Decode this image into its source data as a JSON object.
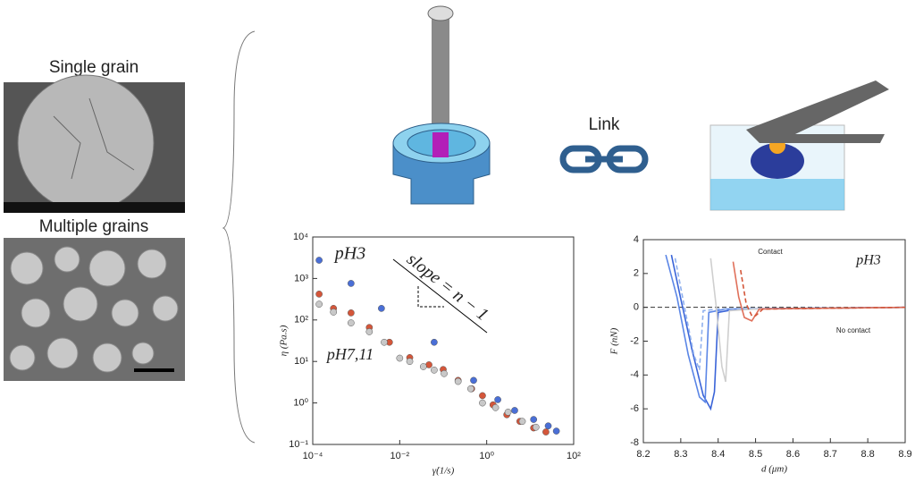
{
  "panels": {
    "single_grain": "Single grain",
    "multiple_grains": "Multiple grains",
    "link": "Link"
  },
  "chart_data": [
    {
      "type": "scatter",
      "x_label": "γ̇(1/s)",
      "y_label": "η (Pa.s)",
      "annotations": [
        "pH3",
        "pH7,11",
        "slope = n − 1"
      ],
      "xscale": "log",
      "yscale": "log",
      "xlim": [
        0.0001,
        100
      ],
      "ylim": [
        0.1,
        10000
      ],
      "xticks": [
        {
          "value": 0.0001,
          "label": "10⁻⁴"
        },
        {
          "value": 0.01,
          "label": "10⁻²"
        },
        {
          "value": 1,
          "label": "10⁰"
        },
        {
          "value": 100,
          "label": "10²"
        }
      ],
      "yticks": [
        {
          "value": 0.1,
          "label": "10⁻¹"
        },
        {
          "value": 1,
          "label": "10⁰"
        },
        {
          "value": 10,
          "label": "10¹"
        },
        {
          "value": 100,
          "label": "10²"
        },
        {
          "value": 1000,
          "label": "10³"
        },
        {
          "value": 10000,
          "label": "10⁴"
        }
      ],
      "series": [
        {
          "color": "#4a6fd6",
          "x": [
            0.00014,
            0.00076,
            0.0038,
            0.062,
            0.5,
            1.8,
            4.4,
            12,
            26,
            40
          ],
          "values": [
            2750,
            760,
            190,
            29,
            3.5,
            1.2,
            0.66,
            0.4,
            0.28,
            0.21
          ]
        },
        {
          "color": "#d4563a",
          "x": [
            0.00014,
            0.0003,
            0.00076,
            0.002,
            0.0058,
            0.017,
            0.047,
            0.1,
            0.22,
            0.45,
            0.8,
            1.4,
            2.9,
            5.8,
            12,
            23
          ],
          "values": [
            420,
            190,
            148,
            66,
            29,
            12.4,
            8.3,
            6.4,
            3.5,
            2.2,
            1.5,
            0.9,
            0.52,
            0.36,
            0.25,
            0.2
          ]
        },
        {
          "color": "#c8c8c8",
          "x": [
            0.00014,
            0.0003,
            0.00076,
            0.002,
            0.0044,
            0.01,
            0.017,
            0.035,
            0.062,
            0.105,
            0.22,
            0.43,
            0.8,
            1.6,
            3.1,
            6.6,
            13.6
          ],
          "values": [
            240,
            155,
            85,
            52,
            29,
            12,
            10,
            7.5,
            6.2,
            5.1,
            3.3,
            2.2,
            1.0,
            0.77,
            0.6,
            0.36,
            0.26
          ]
        }
      ]
    },
    {
      "type": "line",
      "x_label": "d (μm)",
      "y_label": "F (nN)",
      "annotations": [
        "pH3",
        "Contact",
        "No contact"
      ],
      "zero_line": true,
      "xlim": [
        8.2,
        8.9
      ],
      "ylim": [
        -8,
        4
      ],
      "xticks": [
        8.2,
        8.3,
        8.4,
        8.5,
        8.6,
        8.7,
        8.8,
        8.9
      ],
      "yticks": [
        -8,
        -6,
        -4,
        -2,
        0,
        2,
        4
      ],
      "series": [
        {
          "color": "#3a64d8",
          "dash": false,
          "x": [
            8.275,
            8.3,
            8.33,
            8.36,
            8.38,
            8.39,
            8.4,
            8.45,
            8.9
          ],
          "values": [
            3.1,
            0.5,
            -2.5,
            -5.2,
            -6,
            -5,
            -0.3,
            -0.1,
            0
          ]
        },
        {
          "color": "#5b86e6",
          "dash": false,
          "x": [
            8.26,
            8.29,
            8.32,
            8.35,
            8.365,
            8.375,
            8.42,
            8.9
          ],
          "values": [
            3.1,
            0.6,
            -2.8,
            -5.3,
            -5.6,
            -0.3,
            -0.1,
            0
          ]
        },
        {
          "color": "#8fb0ee",
          "dash": true,
          "x": [
            8.285,
            8.31,
            8.335,
            8.35,
            8.36,
            8.4,
            8.9
          ],
          "values": [
            2.9,
            0,
            -2.8,
            -3.7,
            -0.2,
            -0.1,
            0
          ]
        },
        {
          "color": "#cfcfcf",
          "dash": false,
          "x": [
            8.38,
            8.395,
            8.41,
            8.42,
            8.43,
            8.5,
            8.9
          ],
          "values": [
            2.9,
            0,
            -3.5,
            -4.4,
            -0.2,
            -0.1,
            0
          ]
        },
        {
          "color": "#e0705a",
          "dash": false,
          "x": [
            8.44,
            8.455,
            8.47,
            8.49,
            8.51,
            8.9
          ],
          "values": [
            2.7,
            0.6,
            -0.6,
            -0.8,
            -0.1,
            0
          ]
        },
        {
          "color": "#d4563a",
          "dash": true,
          "x": [
            8.46,
            8.475,
            8.49,
            8.5,
            8.52,
            8.9
          ],
          "values": [
            2.2,
            0.2,
            -0.5,
            -0.5,
            -0.1,
            0
          ]
        }
      ]
    }
  ]
}
